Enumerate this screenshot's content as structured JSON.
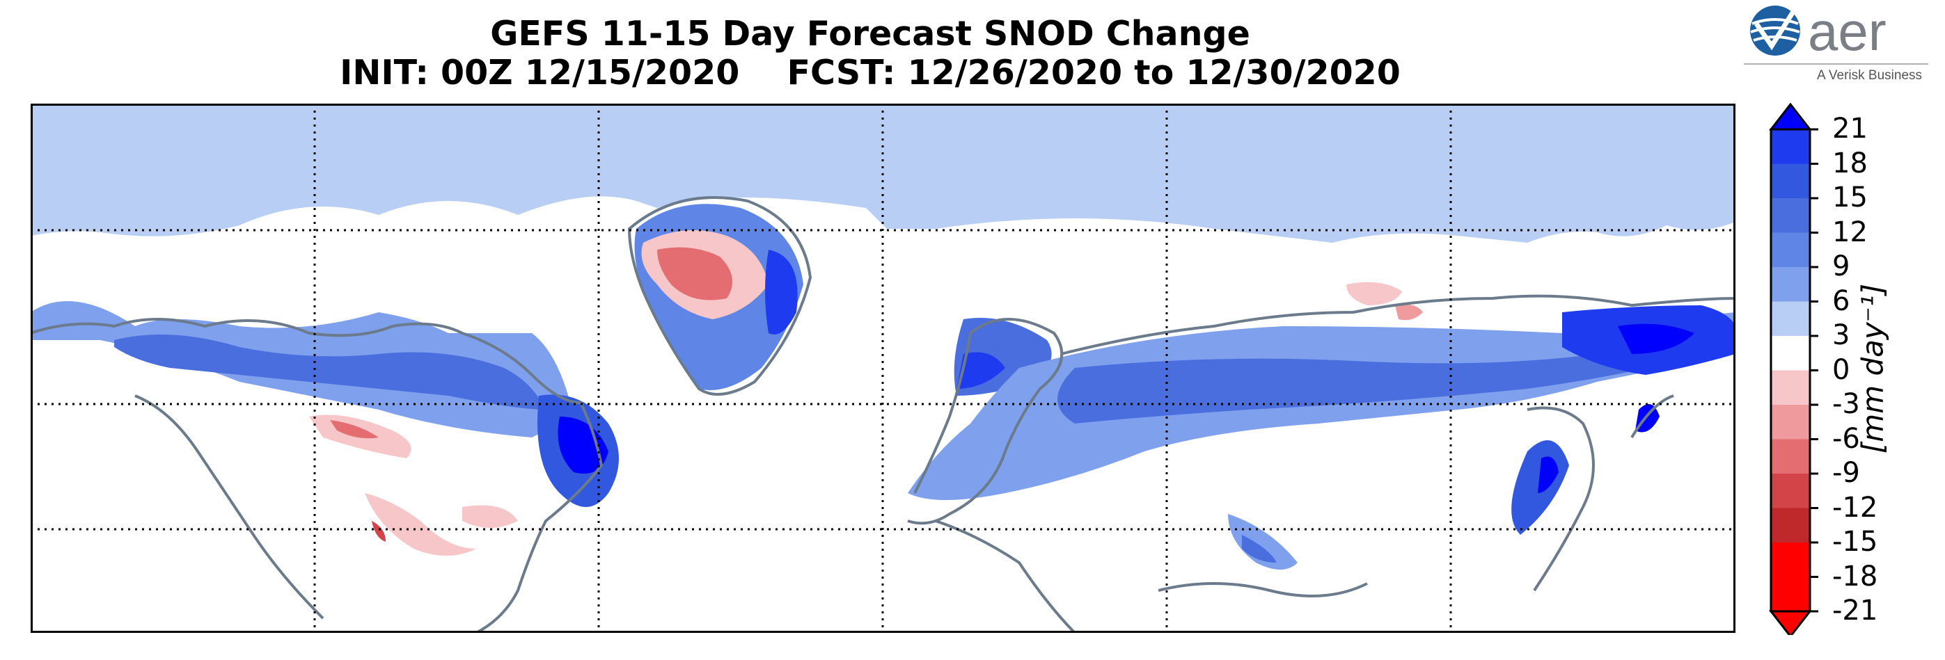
{
  "title_line1": "GEFS 11-15 Day Forecast SNOD Change",
  "title_line2": "INIT: 00Z 12/15/2020    FCST: 12/26/2020 to 12/30/2020",
  "logo": {
    "name": "aer",
    "tagline": "A Verisk Business",
    "icon": "aer-globe-logo"
  },
  "colorbar": {
    "unit_label": "[mm day⁻¹]",
    "ticks": [
      "21",
      "18",
      "15",
      "12",
      "9",
      "6",
      "3",
      "0",
      "-3",
      "-6",
      "-9",
      "-12",
      "-15",
      "-18",
      "-21"
    ],
    "colors": [
      "#0000ff",
      "#1f3bf0",
      "#3358e0",
      "#4a6ede",
      "#5f86e6",
      "#7fa0ec",
      "#b9cef4",
      "#ffffff",
      "#f6c6c8",
      "#ef9a9c",
      "#e36d70",
      "#d24447",
      "#c0292c",
      "#ff0000"
    ]
  },
  "map": {
    "projection": "plate-carree",
    "gridlines": "dotted",
    "colors": {
      "coast": "#6b7b8c",
      "polar": "#b9cef4",
      "mid_blue": "#5f86e6",
      "strong_blue": "#1f3bf0",
      "light_red": "#f6c6c8",
      "red": "#e36d70"
    }
  }
}
